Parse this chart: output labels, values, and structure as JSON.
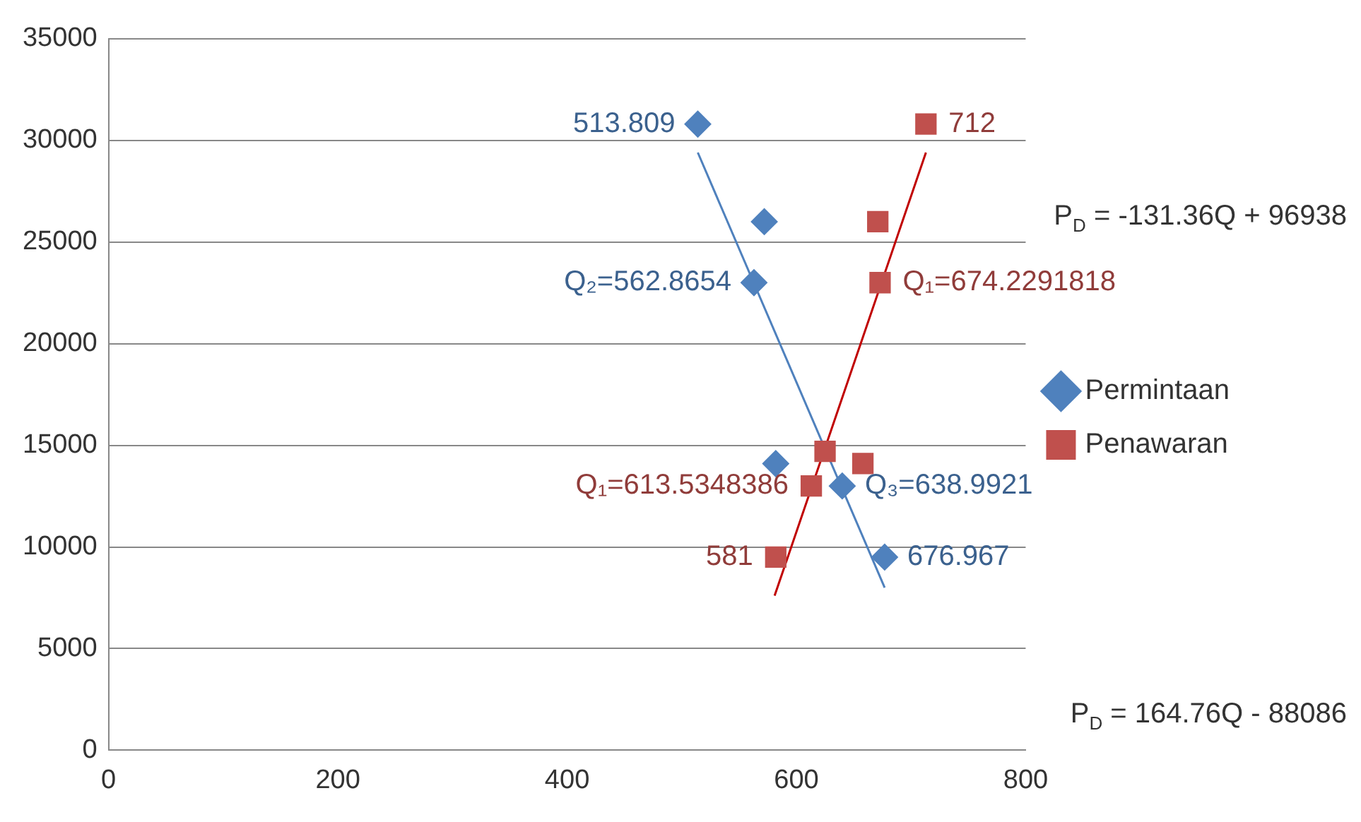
{
  "chart_data": {
    "type": "scatter",
    "xlim": [
      0,
      800
    ],
    "xticks": [
      0,
      200,
      400,
      600,
      800
    ],
    "ylim": [
      0,
      35000
    ],
    "yticks": [
      0,
      5000,
      10000,
      15000,
      20000,
      25000,
      30000,
      35000
    ],
    "grid": "y",
    "legend": "right",
    "series": [
      {
        "name": "Permintaan",
        "color": "#4f81bd",
        "marker": "diamond",
        "x": [
          514,
          572,
          563,
          582,
          640,
          677
        ],
        "values": [
          30800,
          26000,
          23000,
          14100,
          13000,
          9500
        ]
      },
      {
        "name": "Penawaran",
        "color": "#c0504d",
        "marker": "square",
        "x": [
          713,
          671,
          673,
          625,
          658,
          613,
          582
        ],
        "values": [
          30800,
          26000,
          23000,
          14700,
          14100,
          13000,
          9500
        ]
      },
      {
        "type": "line",
        "color": "#4f81bd",
        "marker": "none",
        "x": [
          514,
          677
        ],
        "values": [
          29400,
          8000
        ]
      },
      {
        "type": "line",
        "color": "#c00000",
        "marker": "none",
        "x": [
          581,
          713
        ],
        "values": [
          7600,
          29400
        ]
      }
    ],
    "annotations": [
      {
        "text": "513.809",
        "x": 514,
        "y": 30800
      },
      {
        "text": "712",
        "x": 713,
        "y": 30800
      },
      {
        "text": "Q₂=562.8654",
        "x": 563,
        "y": 23000
      },
      {
        "text": "Q₁=674.2291818",
        "x": 673,
        "y": 23000
      },
      {
        "text": "Q₁=613.5348386",
        "x": 613,
        "y": 13000
      },
      {
        "text": "Q₃=638.9921",
        "x": 640,
        "y": 13000
      },
      {
        "text": "581",
        "x": 582,
        "y": 9500
      },
      {
        "text": "676.967",
        "x": 677,
        "y": 9500
      },
      "P$_{D}$ = -131.36Q + 96938",
      "P$_{D}$ = 164.76Q - 88086"
    ]
  }
}
